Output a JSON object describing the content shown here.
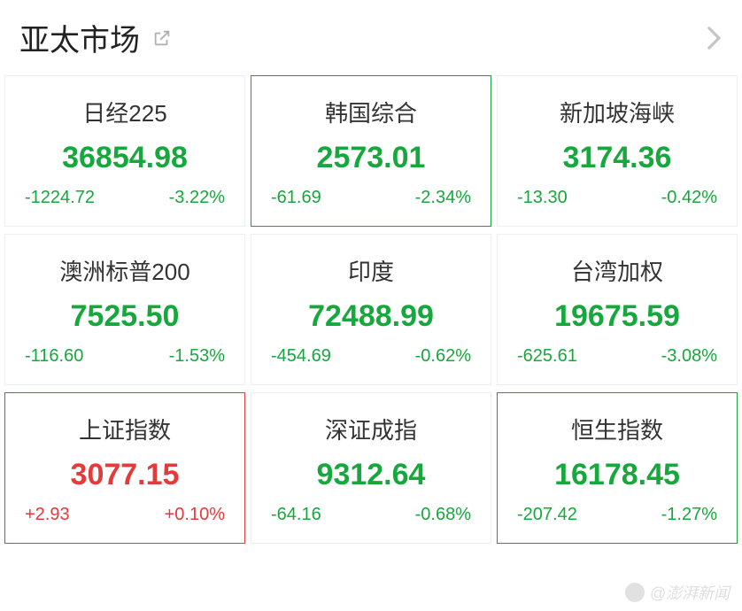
{
  "header": {
    "title": "亚太市场"
  },
  "colors": {
    "down": "#16a83c",
    "up": "#e33a3a",
    "border": "#eeeeee",
    "highlight_green": "#1da03a",
    "highlight_red": "#e33a3a",
    "title": "#222222",
    "name": "#333333",
    "background": "#ffffff"
  },
  "grid_layout": {
    "rows": 3,
    "cols": 3
  },
  "markets": [
    {
      "id": "nikkei225",
      "name": "日经225",
      "value": "36854.98",
      "change": "-1224.72",
      "pct": "-3.22%",
      "dir": "down",
      "highlight": null
    },
    {
      "id": "kospi",
      "name": "韩国综合",
      "value": "2573.01",
      "change": "-61.69",
      "pct": "-2.34%",
      "dir": "down",
      "highlight": "green"
    },
    {
      "id": "sti",
      "name": "新加坡海峡",
      "value": "3174.36",
      "change": "-13.30",
      "pct": "-0.42%",
      "dir": "down",
      "highlight": null
    },
    {
      "id": "asx200",
      "name": "澳洲标普200",
      "value": "7525.50",
      "change": "-116.60",
      "pct": "-1.53%",
      "dir": "down",
      "highlight": null
    },
    {
      "id": "sensex",
      "name": "印度",
      "value": "72488.99",
      "change": "-454.69",
      "pct": "-0.62%",
      "dir": "down",
      "highlight": null
    },
    {
      "id": "twse",
      "name": "台湾加权",
      "value": "19675.59",
      "change": "-625.61",
      "pct": "-3.08%",
      "dir": "down",
      "highlight": null
    },
    {
      "id": "ssec",
      "name": "上证指数",
      "value": "3077.15",
      "change": "+2.93",
      "pct": "+0.10%",
      "dir": "up",
      "highlight": "red"
    },
    {
      "id": "szse",
      "name": "深证成指",
      "value": "9312.64",
      "change": "-64.16",
      "pct": "-0.68%",
      "dir": "down",
      "highlight": null
    },
    {
      "id": "hsi",
      "name": "恒生指数",
      "value": "16178.45",
      "change": "-207.42",
      "pct": "-1.27%",
      "dir": "down",
      "highlight": "green"
    }
  ],
  "watermark": {
    "text": "@澎湃新闻"
  }
}
